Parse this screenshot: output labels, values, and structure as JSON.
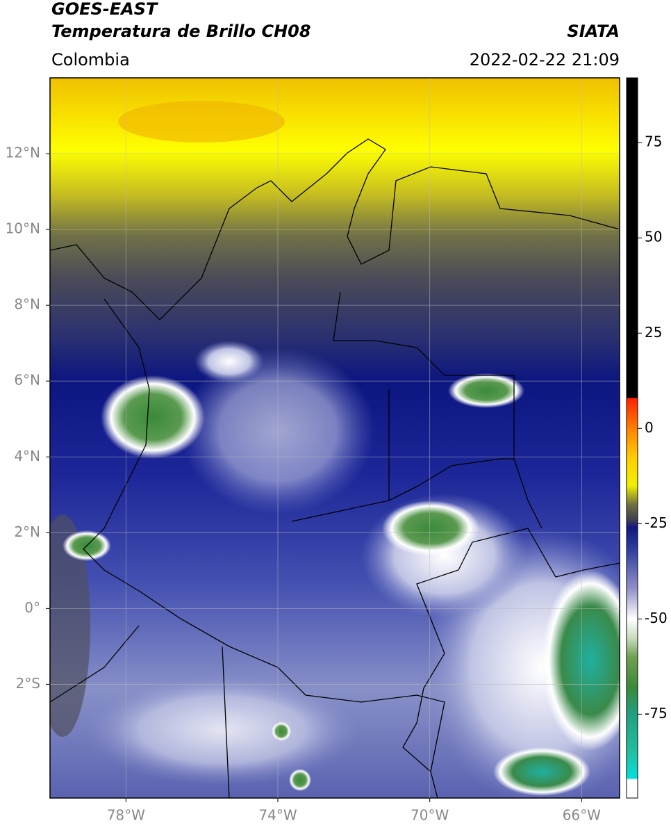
{
  "header": {
    "satellite": "GOES-EAST",
    "product": "Temperatura de Brillo CH08",
    "agency": "SIATA",
    "region": "Colombia",
    "datetime": "2022-02-22 21:09"
  },
  "map": {
    "xlim": [
      -80,
      -65
    ],
    "ylim": [
      -5,
      14
    ],
    "xticks": [
      {
        "value": -78,
        "label": "78°W"
      },
      {
        "value": -74,
        "label": "74°W"
      },
      {
        "value": -70,
        "label": "70°W"
      },
      {
        "value": -66,
        "label": "66°W"
      }
    ],
    "yticks": [
      {
        "value": 12,
        "label": "12°N"
      },
      {
        "value": 10,
        "label": "10°N"
      },
      {
        "value": 8,
        "label": "8°N"
      },
      {
        "value": 6,
        "label": "6°N"
      },
      {
        "value": 4,
        "label": "4°N"
      },
      {
        "value": 2,
        "label": "2°N"
      },
      {
        "value": 0,
        "label": "0°"
      },
      {
        "value": -2,
        "label": "2°S"
      }
    ],
    "grid": true
  },
  "colorbar": {
    "lim": [
      -97,
      92
    ],
    "ticks": [
      75,
      50,
      25,
      0,
      -25,
      -50,
      -75
    ],
    "colorscale": [
      [
        -97,
        "#ffffff"
      ],
      [
        -92,
        "#ffffff"
      ],
      [
        -92,
        "#00e0e0"
      ],
      [
        -85,
        "#20c0a0"
      ],
      [
        -75,
        "#20a080"
      ],
      [
        -68,
        "#3a8a3a"
      ],
      [
        -60,
        "#70a050"
      ],
      [
        -55,
        "#c8dcc0"
      ],
      [
        -50,
        "#ffffff"
      ],
      [
        -42,
        "#9090c8"
      ],
      [
        -32,
        "#3040a0"
      ],
      [
        -26,
        "#101880"
      ],
      [
        -24,
        "#404050"
      ],
      [
        -20,
        "#707040"
      ],
      [
        -15,
        "#f0f000"
      ],
      [
        -8,
        "#ffd000"
      ],
      [
        0,
        "#ff8000"
      ],
      [
        8,
        "#ff2000"
      ],
      [
        8,
        "#000000"
      ],
      [
        92,
        "#000000"
      ]
    ]
  }
}
